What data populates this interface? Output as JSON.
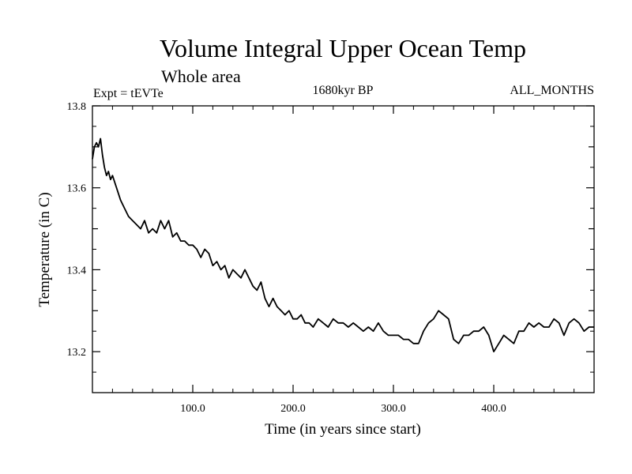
{
  "chart_data": {
    "type": "line",
    "title": "Volume Integral Upper Ocean Temp",
    "subtitle": "Whole area",
    "annotations": {
      "left": "Expt = tEVTe",
      "center": "1680kyr BP",
      "right": "ALL_MONTHS"
    },
    "xlabel": "Time (in years since start)",
    "ylabel": "Temperature (in C)",
    "xlim": [
      0,
      500
    ],
    "ylim": [
      13.1,
      13.8
    ],
    "x_ticks": [
      100,
      200,
      300,
      400
    ],
    "x_tick_labels": [
      "100.0",
      "200.0",
      "300.0",
      "400.0"
    ],
    "y_ticks": [
      13.2,
      13.4,
      13.6,
      13.8
    ],
    "y_tick_labels": [
      "13.2",
      "13.4",
      "13.6",
      "13.8"
    ],
    "grid": false,
    "series": [
      {
        "name": "Temperature",
        "color": "#000000",
        "x": [
          0,
          2,
          4,
          6,
          8,
          10,
          12,
          14,
          16,
          18,
          20,
          24,
          28,
          32,
          36,
          40,
          44,
          48,
          52,
          56,
          60,
          64,
          68,
          72,
          76,
          80,
          84,
          88,
          92,
          96,
          100,
          104,
          108,
          112,
          116,
          120,
          124,
          128,
          132,
          136,
          140,
          144,
          148,
          152,
          156,
          160,
          164,
          168,
          172,
          176,
          180,
          184,
          188,
          192,
          196,
          200,
          204,
          208,
          212,
          216,
          220,
          225,
          230,
          235,
          240,
          245,
          250,
          255,
          260,
          265,
          270,
          275,
          280,
          285,
          290,
          295,
          300,
          305,
          310,
          315,
          320,
          325,
          330,
          335,
          340,
          345,
          350,
          355,
          360,
          365,
          370,
          375,
          380,
          385,
          390,
          395,
          400,
          405,
          410,
          415,
          420,
          425,
          430,
          435,
          440,
          445,
          450,
          455,
          460,
          465,
          470,
          475,
          480,
          485,
          490,
          495,
          500
        ],
        "values": [
          13.67,
          13.7,
          13.71,
          13.7,
          13.72,
          13.68,
          13.65,
          13.63,
          13.64,
          13.62,
          13.63,
          13.6,
          13.57,
          13.55,
          13.53,
          13.52,
          13.51,
          13.5,
          13.52,
          13.49,
          13.5,
          13.49,
          13.52,
          13.5,
          13.52,
          13.48,
          13.49,
          13.47,
          13.47,
          13.46,
          13.46,
          13.45,
          13.43,
          13.45,
          13.44,
          13.41,
          13.42,
          13.4,
          13.41,
          13.38,
          13.4,
          13.39,
          13.38,
          13.4,
          13.38,
          13.36,
          13.35,
          13.37,
          13.33,
          13.31,
          13.33,
          13.31,
          13.3,
          13.29,
          13.3,
          13.28,
          13.28,
          13.29,
          13.27,
          13.27,
          13.26,
          13.28,
          13.27,
          13.26,
          13.28,
          13.27,
          13.27,
          13.26,
          13.27,
          13.26,
          13.25,
          13.26,
          13.25,
          13.27,
          13.25,
          13.24,
          13.24,
          13.24,
          13.23,
          13.23,
          13.22,
          13.22,
          13.25,
          13.27,
          13.28,
          13.3,
          13.29,
          13.28,
          13.23,
          13.22,
          13.24,
          13.24,
          13.25,
          13.25,
          13.26,
          13.24,
          13.2,
          13.22,
          13.24,
          13.23,
          13.22,
          13.25,
          13.25,
          13.27,
          13.26,
          13.27,
          13.26,
          13.26,
          13.28,
          13.27,
          13.24,
          13.27,
          13.28,
          13.27,
          13.25,
          13.26,
          13.26
        ]
      }
    ]
  }
}
